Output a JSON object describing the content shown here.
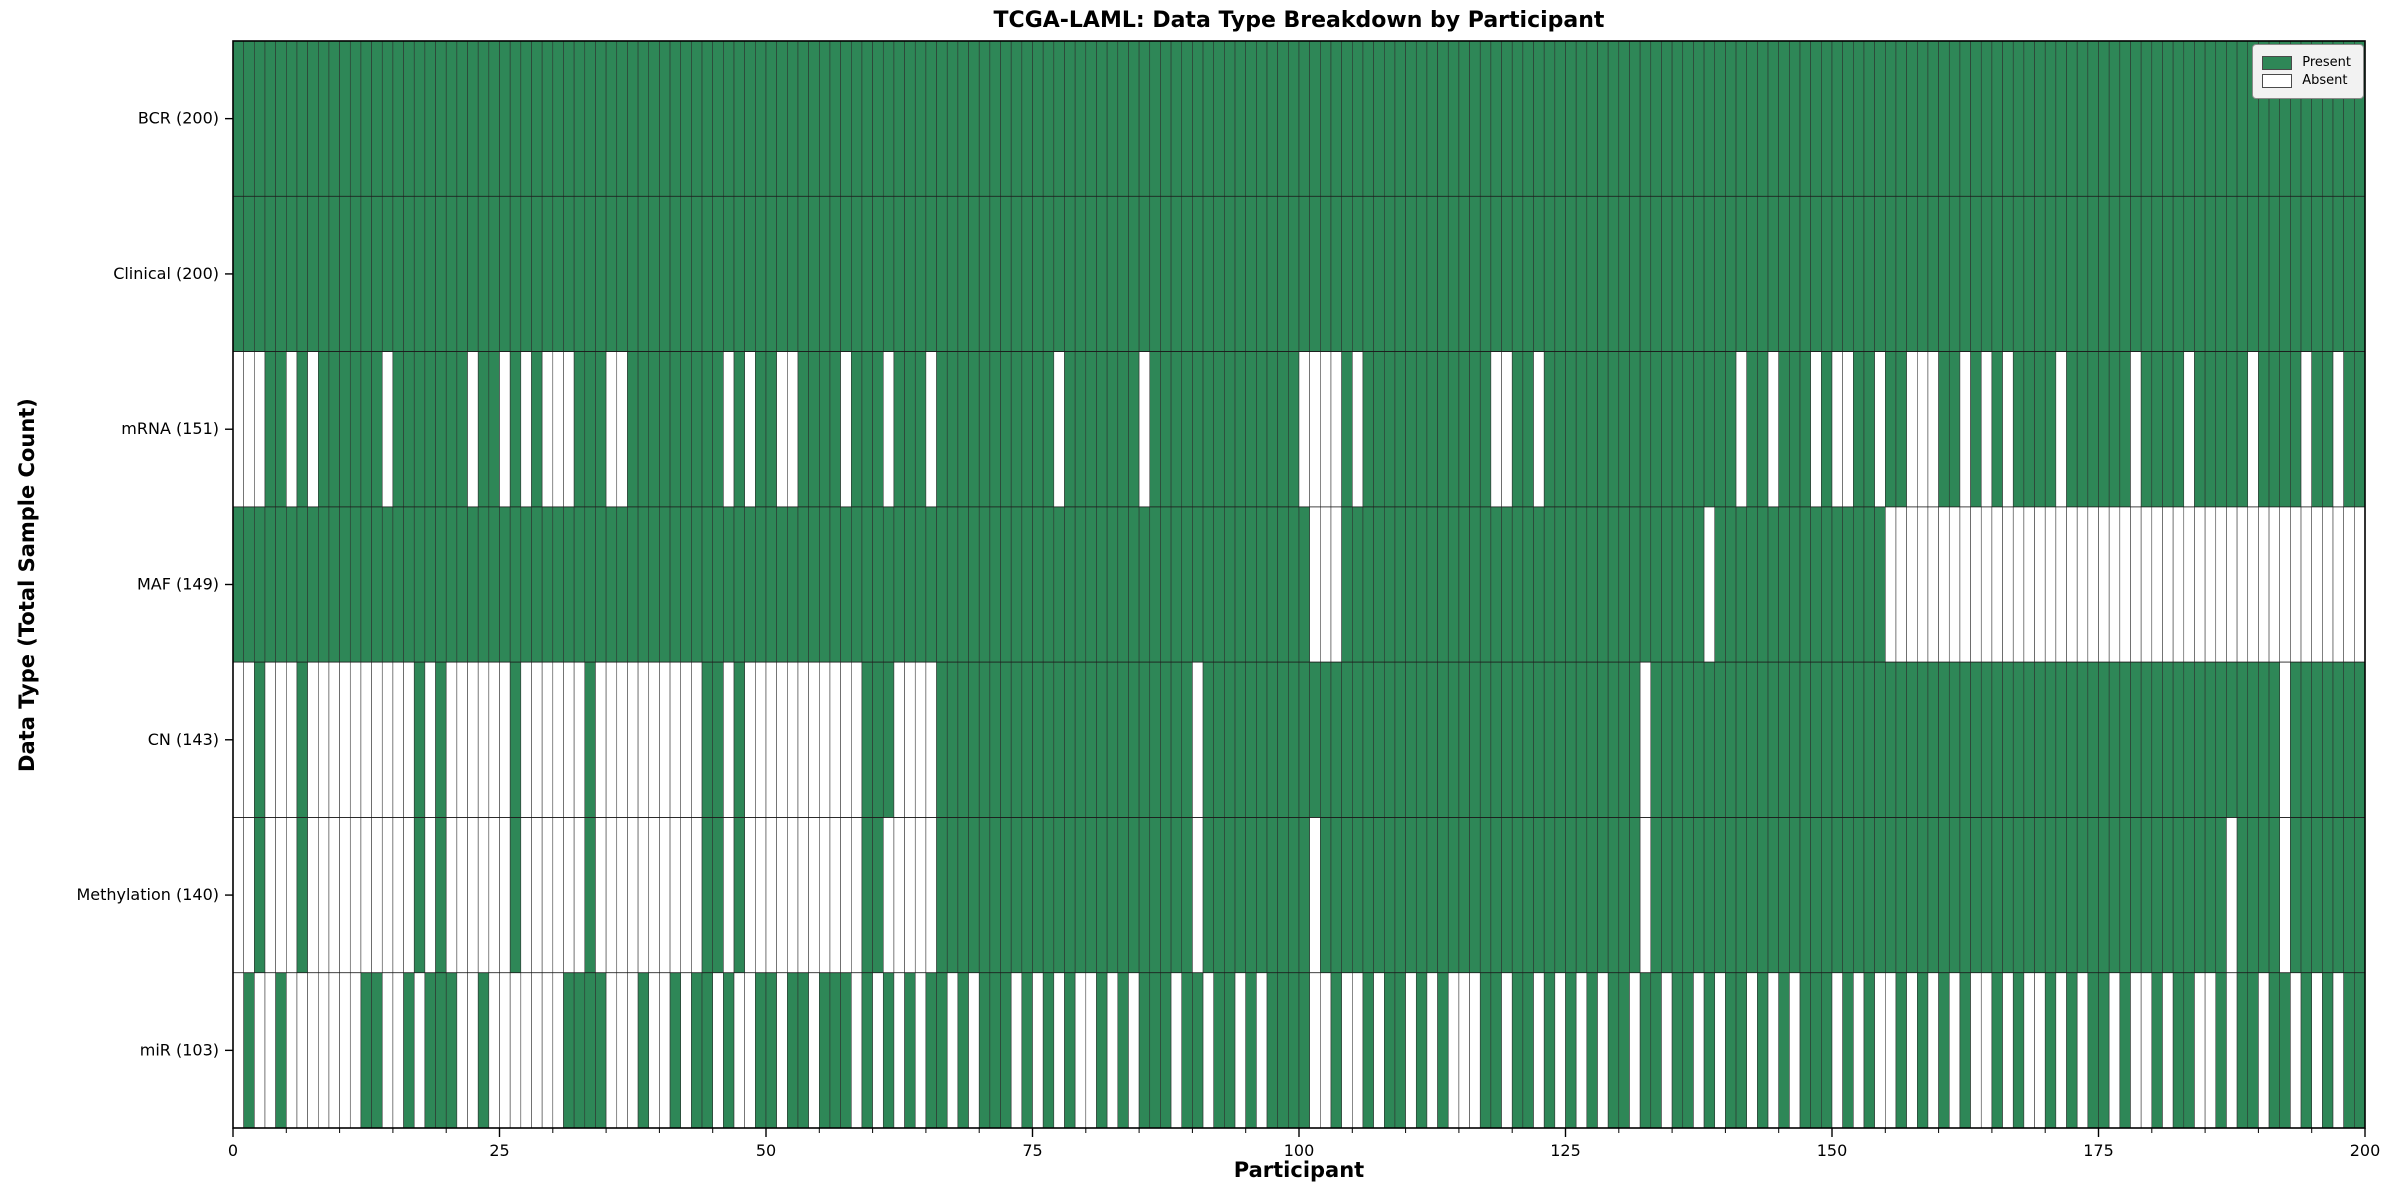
{
  "title": "TCGA-LAML: Data Type Breakdown by Participant",
  "xlabel": "Participant",
  "ylabel": "Data Type (Total Sample Count)",
  "legend": {
    "present_label": "Present",
    "absent_label": "Absent"
  },
  "colors": {
    "present": "#2e8757",
    "absent": "#ffffff",
    "cell_edge": "#2d2d2d",
    "spine": "#000000",
    "legend_bg": "#f2f2f2",
    "legend_border": "#8a8a8a"
  },
  "x_ticks": [
    0,
    25,
    50,
    75,
    100,
    125,
    150,
    175,
    200
  ],
  "x_minor_tick_step": 5,
  "chart_data": {
    "type": "heatmap",
    "x_range": [
      0,
      200
    ],
    "n_participants": 200,
    "legend_position": "upper right",
    "value_legend": {
      "1": "Present",
      "0": "Absent"
    },
    "rows": [
      {
        "name": "BCR",
        "total": 200,
        "label": "BCR (200)",
        "pattern": "11111111111111111111111111111111111111111111111111111111111111111111111111111111111111111111111111111111111111111111111111111111111111111111111111111111111111111111111111111111111111111111111111111111"
      },
      {
        "name": "Clinical",
        "total": 200,
        "label": "Clinical (200)",
        "pattern": "11111111111111111111111111111111111111111111111111111111111111111111111111111111111111111111111111111111111111111111111111111111111111111111111111111111111111111111111111111111111111111111111111111111"
      },
      {
        "name": "mRNA",
        "total": 151,
        "label": "mRNA (151)",
        "pattern": "00011010111111011111110110101000111001111111110101100111101110111011111111111011111110111111111111110000101111111111110011011111111111111111101101110100110110001101010111101111110111101111101111011011"
      },
      {
        "name": "MAF",
        "total": 149,
        "label": "MAF (149)",
        "pattern": "11111111111111111111111111111111111111111111111111111111111111111111111111111111111111111111111111111000111111111111111111111111111111111101111111111111111000000000000000000000000000000000000000000000"
      },
      {
        "name": "CN",
        "total": 143,
        "label": "CN (143)",
        "pattern": "00100010000000000101000000100000010000000000110100000000000111000011111111111111111111111101111111111111111111111111111111111111111101111111111111111111111111111111111111111111111111111111111101111111"
      },
      {
        "name": "Methylation",
        "total": 140,
        "label": "Methylation (140)",
        "pattern": "00100010000000000101000000100000010000000000110100000000000110000011111111111111111111111101111111111011111111111111111111111111111101111111111111111111111111111111111111111111111111111110111101111111"
      },
      {
        "name": "miR",
        "total": 103,
        "label": "miR (103)",
        "pattern": "01001000000011001011100100000001111000100101101001101101110101010110101110101010010101110110110101111001001011010100011011010101011011011010110101011101010010101010010100101011010010110010110110101011"
      }
    ]
  }
}
